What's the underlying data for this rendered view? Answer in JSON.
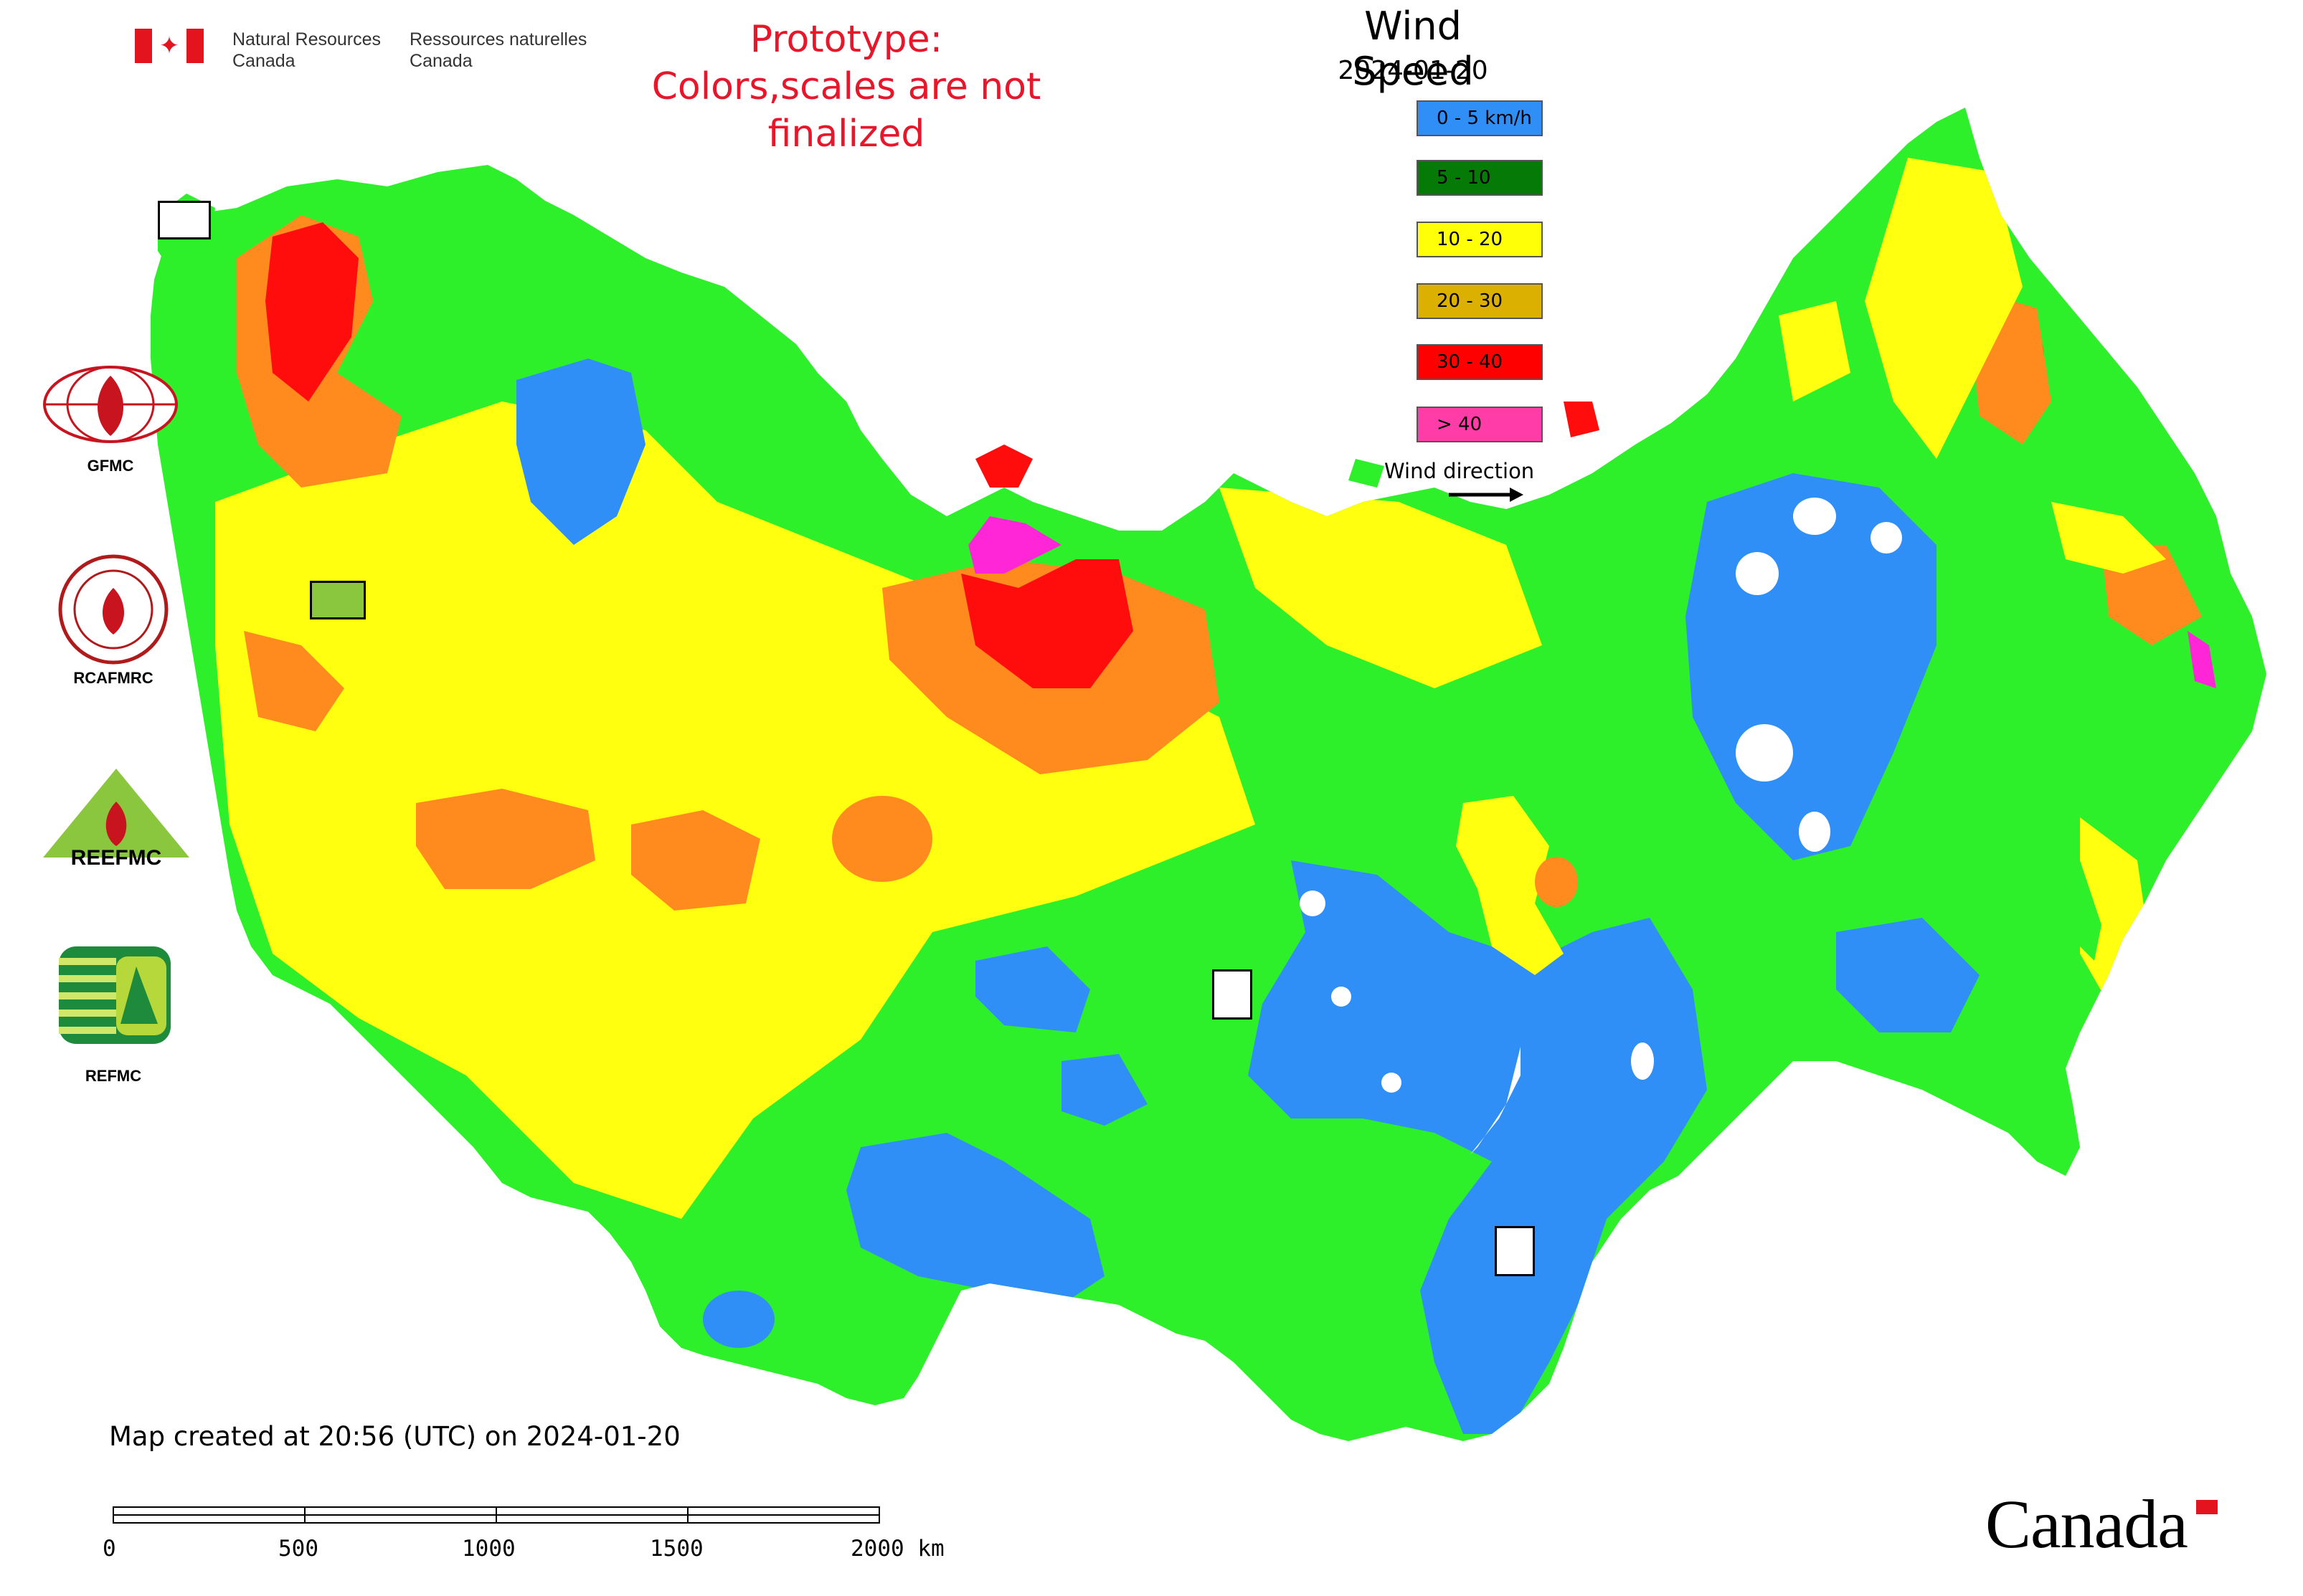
{
  "header": {
    "dept_en_line1": "Natural Resources",
    "dept_en_line2": "Canada",
    "dept_fr_line1": "Ressources naturelles",
    "dept_fr_line2": "Canada"
  },
  "notice": {
    "line1": "Prototype:",
    "line2": "Colors,scales are not finalized"
  },
  "legend": {
    "title": "Wind Speed",
    "date": "2024-01-20",
    "items": [
      {
        "label": "0 - 5 km/h",
        "color": "#2f8ff7"
      },
      {
        "label": "5 - 10",
        "color": "#067a07"
      },
      {
        "label": "10 - 20",
        "color": "#ffff07"
      },
      {
        "label": "20 - 30",
        "color": "#dcb000"
      },
      {
        "label": "30 - 40",
        "color": "#ff0000"
      },
      {
        "label": "> 40",
        "color": "#ff3ca8"
      }
    ],
    "wind_direction_label": "Wind direction"
  },
  "map_colors": {
    "calm": "#2f8ff7",
    "light": "#2ef02a",
    "moderate": "#ffff10",
    "fresh": "#ff8a1e",
    "strong": "#ff0c0c",
    "extreme": "#ff26d8"
  },
  "side_logos": {
    "gfmc": "GFMC",
    "rcafmrc": "RCAFMRC",
    "reefmc_text": "REEFMC",
    "refmc": "REFMC",
    "logo_icon_names": [
      "gfmc-logo-icon",
      "rcafmrc-logo-icon",
      "reefmc-logo-icon",
      "refmc-logo-icon"
    ]
  },
  "footer": {
    "created": "Map created at 20:56 (UTC) on 2024-01-20",
    "scale_ticks": [
      "0",
      "500",
      "1000",
      "1500",
      "2000 km"
    ],
    "wordmark": "Canada"
  }
}
